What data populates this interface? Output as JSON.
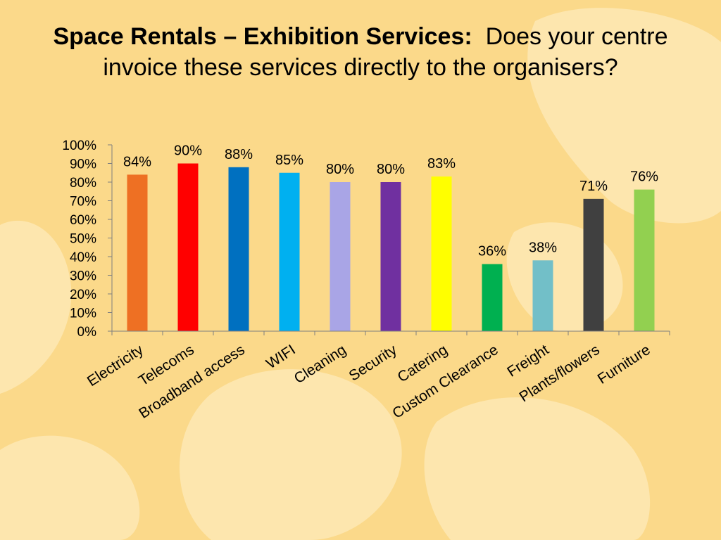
{
  "slide": {
    "title_bold": "Space Rentals – Exhibition Services:",
    "title_rest": "Does your centre invoice these services directly to the organisers?"
  },
  "chart_data": {
    "type": "bar",
    "categories": [
      "Electricity",
      "Telecoms",
      "Broadband access",
      "WIFI",
      "Cleaning",
      "Security",
      "Catering",
      "Custom Clearance",
      "Freight",
      "Plants/flowers",
      "Furniture"
    ],
    "values": [
      84,
      90,
      88,
      85,
      80,
      80,
      83,
      36,
      38,
      71,
      76
    ],
    "data_labels": [
      "84%",
      "90%",
      "88%",
      "85%",
      "80%",
      "80%",
      "83%",
      "36%",
      "38%",
      "71%",
      "76%"
    ],
    "colors": [
      "#EE7023",
      "#FF0000",
      "#0070C0",
      "#00B0F0",
      "#A9A5E6",
      "#7030A0",
      "#FFFF00",
      "#00B050",
      "#72BFC8",
      "#404040",
      "#92D050"
    ],
    "y_ticks": [
      "0%",
      "10%",
      "20%",
      "30%",
      "40%",
      "50%",
      "60%",
      "70%",
      "80%",
      "90%",
      "100%"
    ],
    "ylim": [
      0,
      100
    ],
    "grid": false,
    "legend": "none"
  },
  "colors": {
    "background": "#FBD98A",
    "blob": "#FDE6AE",
    "axis": "#7F7F7F"
  }
}
